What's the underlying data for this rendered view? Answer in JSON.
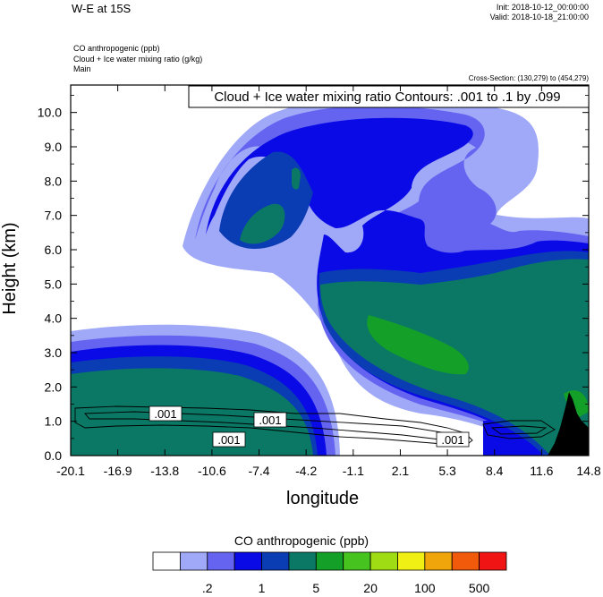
{
  "header": {
    "title": "W-E at 15S",
    "init": "Init: 2018-10-12_00:00:00",
    "valid": "Valid: 2018-10-18_21:00:00",
    "variables": [
      "CO anthropogenic   (ppb)",
      "Cloud + Ice water mixing ratio   (g/kg)",
      "Main"
    ],
    "cross_section": "Cross-Section: (130,279) to (454,279)"
  },
  "chart_data": {
    "type": "contour",
    "xlabel": "longitude",
    "ylabel": "Height (km)",
    "xlim": [
      -20.1,
      14.8
    ],
    "ylim": [
      0,
      10.8
    ],
    "xticks": [
      "-20.1",
      "-16.9",
      "-13.8",
      "-10.6",
      "-7.4",
      "-4.2",
      "-1.1",
      "2.1",
      "5.3",
      "8.4",
      "11.6",
      "14.8"
    ],
    "yticks": [
      "0.0",
      "1.0",
      "2.0",
      "3.0",
      "4.0",
      "5.0",
      "6.0",
      "7.0",
      "8.0",
      "9.0",
      "10.0"
    ],
    "contour_info": "Cloud + Ice water mixing ratio Contours: .001 to .1 by .099",
    "contour_labels": [
      ".001",
      ".001",
      ".001",
      ".001"
    ],
    "colorbar": {
      "title": "CO anthropogenic  (ppb)",
      "tick_labels": [
        ".2",
        "1",
        "5",
        "20",
        "100",
        "500"
      ],
      "colors": [
        "#ffffff",
        "#a0a8f8",
        "#6464f0",
        "#0a0ae6",
        "#0a3cb4",
        "#0a7864",
        "#14a028",
        "#46c31e",
        "#a0dc14",
        "#f0f014",
        "#f0a50a",
        "#f05a0a",
        "#f01414"
      ]
    }
  }
}
